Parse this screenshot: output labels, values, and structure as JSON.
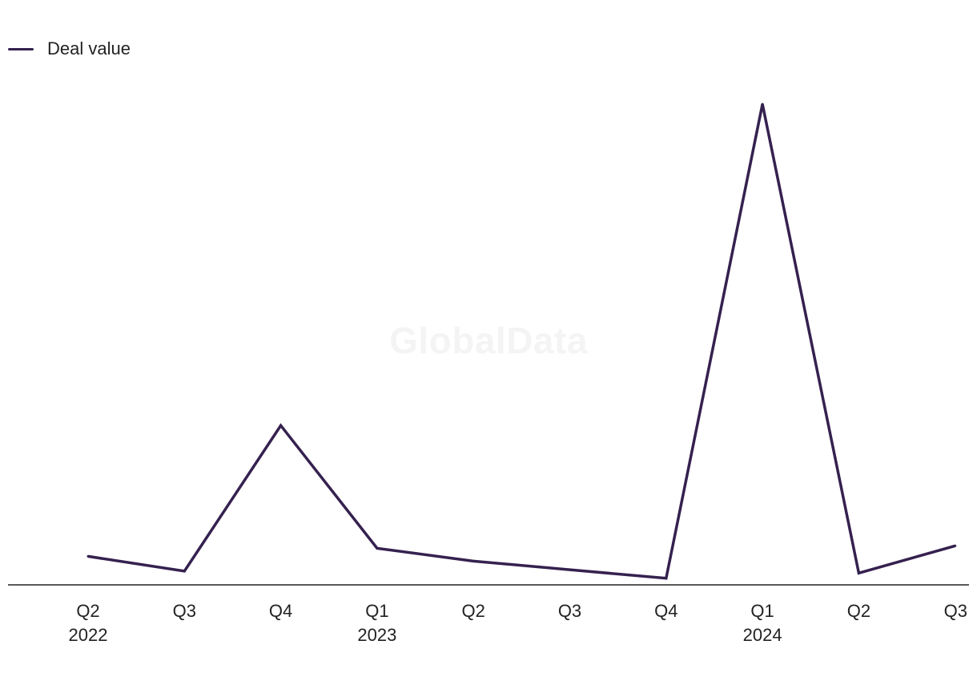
{
  "watermark": "GlobalData",
  "colors": {
    "series": "#35214f",
    "axis": "#222222"
  },
  "chart_data": {
    "type": "line",
    "title": "",
    "xlabel": "",
    "ylabel": "",
    "legend_position": "top-left",
    "grid": false,
    "categories": [
      {
        "quarter": "Q2",
        "year": "2022"
      },
      {
        "quarter": "Q3",
        "year": ""
      },
      {
        "quarter": "Q4",
        "year": ""
      },
      {
        "quarter": "Q1",
        "year": "2023"
      },
      {
        "quarter": "Q2",
        "year": ""
      },
      {
        "quarter": "Q3",
        "year": ""
      },
      {
        "quarter": "Q4",
        "year": ""
      },
      {
        "quarter": "Q1",
        "year": "2024"
      },
      {
        "quarter": "Q2",
        "year": ""
      },
      {
        "quarter": "Q3",
        "year": ""
      }
    ],
    "ylim": [
      0,
      100
    ],
    "series": [
      {
        "name": "Deal value",
        "values": [
          5.3,
          2.2,
          32.7,
          7.0,
          4.3,
          2.5,
          0.7,
          100,
          1.8,
          7.5
        ]
      }
    ]
  }
}
